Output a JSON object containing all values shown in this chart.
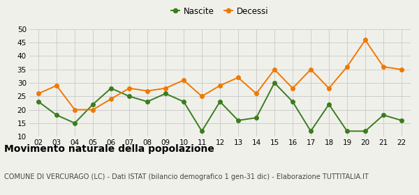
{
  "years": [
    "02",
    "03",
    "04",
    "05",
    "06",
    "07",
    "08",
    "09",
    "10",
    "11",
    "12",
    "13",
    "14",
    "15",
    "16",
    "17",
    "18",
    "19",
    "20",
    "21",
    "22"
  ],
  "nascite": [
    23,
    18,
    15,
    22,
    28,
    25,
    23,
    26,
    23,
    12,
    23,
    16,
    17,
    30,
    23,
    12,
    22,
    12,
    12,
    18,
    16
  ],
  "decessi": [
    26,
    29,
    20,
    20,
    24,
    28,
    27,
    28,
    31,
    25,
    29,
    32,
    26,
    35,
    28,
    35,
    28,
    36,
    46,
    36,
    35
  ],
  "nascite_color": "#3a7d1e",
  "decessi_color": "#f07800",
  "background_color": "#f0f0eb",
  "grid_color": "#cccccc",
  "ylim": [
    10,
    50
  ],
  "yticks": [
    10,
    15,
    20,
    25,
    30,
    35,
    40,
    45,
    50
  ],
  "title": "Movimento naturale della popolazione",
  "subtitle": "COMUNE DI VERCURAGO (LC) - Dati ISTAT (bilancio demografico 1 gen-31 dic) - Elaborazione TUTTITALIA.IT",
  "legend_nascite": "Nascite",
  "legend_decessi": "Decessi",
  "title_fontsize": 10,
  "subtitle_fontsize": 7,
  "legend_fontsize": 8.5,
  "marker_size": 4,
  "linewidth": 1.4
}
